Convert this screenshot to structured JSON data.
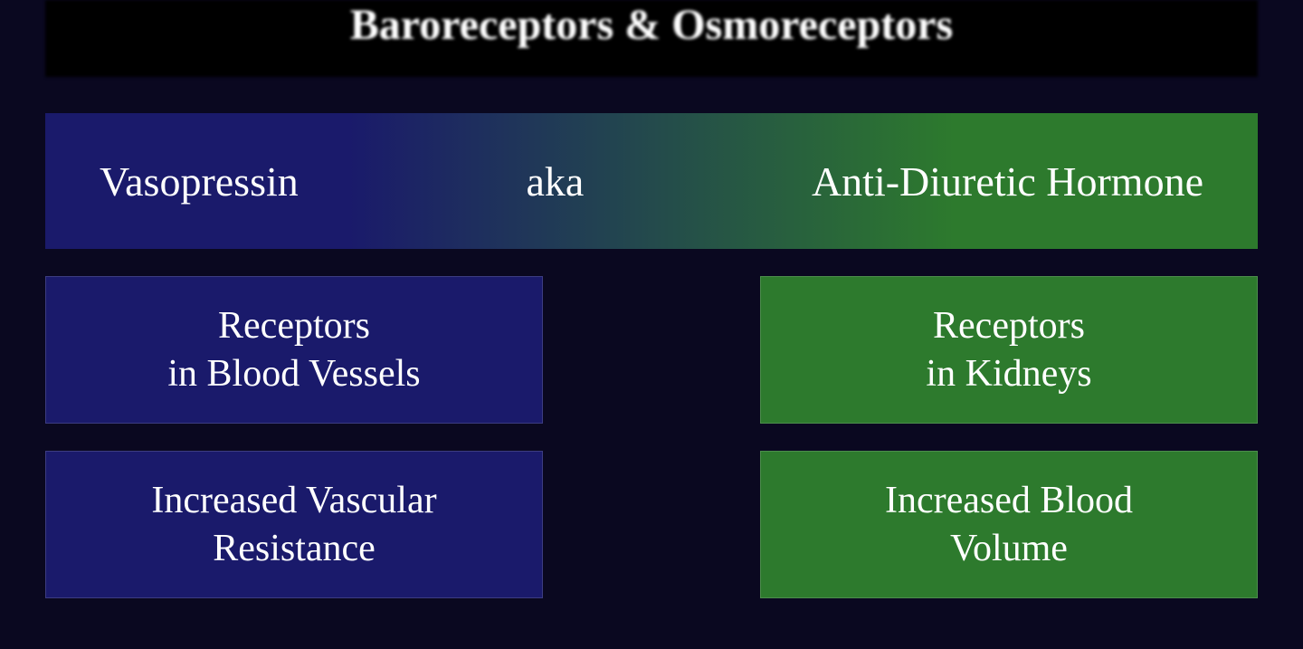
{
  "title": "Baroreceptors & Osmoreceptors",
  "gradient_bar": {
    "left_text": "Vasopressin",
    "center_text": "aka",
    "right_text": "Anti-Diuretic Hormone",
    "left_color": "#1a1a6b",
    "right_color": "#2d7a2d",
    "text_color": "#ffffff",
    "font_size": 46
  },
  "left_column": {
    "box_color": "#1a1a6b",
    "text_color": "#ffffff",
    "boxes": [
      "Receptors\nin Blood Vessels",
      "Increased Vascular\nResistance"
    ]
  },
  "right_column": {
    "box_color": "#2d7a2d",
    "text_color": "#ffffff",
    "boxes": [
      "Receptors\nin Kidneys",
      "Increased Blood\nVolume"
    ]
  },
  "background_color": "#0a0820",
  "title_background": "#000000",
  "font_family": "Georgia, serif",
  "box_font_size": 42,
  "title_font_size": 48
}
